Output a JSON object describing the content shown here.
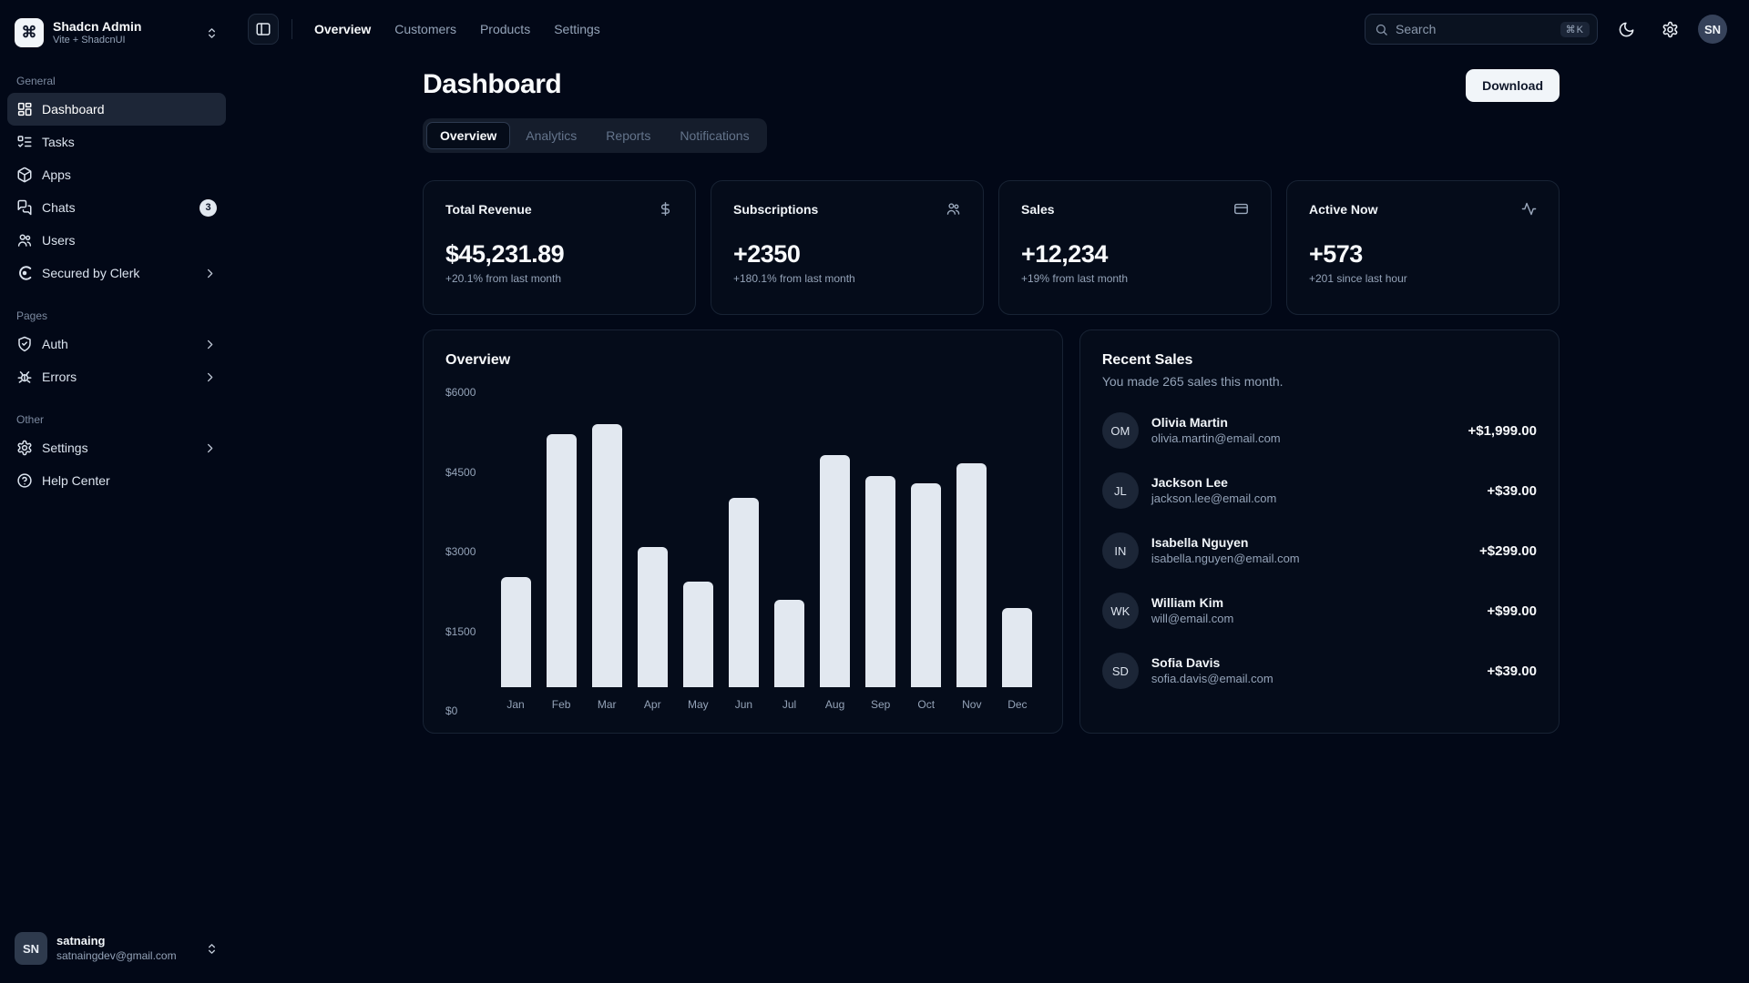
{
  "colors": {
    "background": "#020817",
    "card": "#050c1a",
    "border": "#182334",
    "accent": "#1d2637",
    "foreground": "#f8fafc",
    "muted": "#94a3b8",
    "bar": "#e2e8f0"
  },
  "app": {
    "name": "Shadcn Admin",
    "subtitle": "Vite + ShadcnUI",
    "logo_glyph": "⌘"
  },
  "topnav": {
    "links": [
      {
        "label": "Overview"
      },
      {
        "label": "Customers"
      },
      {
        "label": "Products"
      },
      {
        "label": "Settings"
      }
    ]
  },
  "search": {
    "placeholder": "Search",
    "shortcut": "⌘K"
  },
  "header_icons": [
    "moon-icon",
    "gear-icon"
  ],
  "header_avatar": "SN",
  "sidebar": {
    "sections": [
      {
        "title": "General",
        "items": [
          {
            "label": "Dashboard",
            "icon": "layout-dashboard-icon"
          },
          {
            "label": "Tasks",
            "icon": "list-todo-icon"
          },
          {
            "label": "Apps",
            "icon": "package-icon"
          },
          {
            "label": "Chats",
            "icon": "messages-icon",
            "badge": "3"
          },
          {
            "label": "Users",
            "icon": "users-icon"
          },
          {
            "label": "Secured by Clerk",
            "icon": "clerk-icon"
          }
        ]
      },
      {
        "title": "Pages",
        "items": [
          {
            "label": "Auth",
            "icon": "shield-check-icon"
          },
          {
            "label": "Errors",
            "icon": "bug-icon"
          }
        ]
      },
      {
        "title": "Other",
        "items": [
          {
            "label": "Settings",
            "icon": "gear-icon"
          },
          {
            "label": "Help Center",
            "icon": "help-circle-icon"
          }
        ]
      }
    ],
    "user": {
      "initials": "SN",
      "name": "satnaing",
      "email": "satnaingdev@gmail.com"
    }
  },
  "page": {
    "title": "Dashboard",
    "download_label": "Download",
    "tabs": [
      {
        "label": "Overview"
      },
      {
        "label": "Analytics"
      },
      {
        "label": "Reports"
      },
      {
        "label": "Notifications"
      }
    ]
  },
  "stats": [
    {
      "title": "Total Revenue",
      "icon": "dollar-icon",
      "value": "$45,231.89",
      "delta": "+20.1% from last month"
    },
    {
      "title": "Subscriptions",
      "icon": "users-icon",
      "value": "+2350",
      "delta": "+180.1% from last month"
    },
    {
      "title": "Sales",
      "icon": "credit-card-icon",
      "value": "+12,234",
      "delta": "+19% from last month"
    },
    {
      "title": "Active Now",
      "icon": "activity-icon",
      "value": "+573",
      "delta": "+201 since last hour"
    }
  ],
  "chart_data": {
    "type": "bar",
    "title": "Overview",
    "categories": [
      "Jan",
      "Feb",
      "Mar",
      "Apr",
      "May",
      "Jun",
      "Jul",
      "Aug",
      "Sep",
      "Oct",
      "Nov",
      "Dec"
    ],
    "values": [
      2250,
      5150,
      5350,
      2850,
      2150,
      3850,
      1780,
      4730,
      4300,
      4150,
      4550,
      1610
    ],
    "ytick_labels": [
      "$6000",
      "$4500",
      "$3000",
      "$1500",
      "$0"
    ],
    "ylim": [
      0,
      6000
    ],
    "bar_color": "#e2e8f0",
    "grid": false,
    "legend": false
  },
  "recent_sales": {
    "title": "Recent Sales",
    "subtitle": "You made 265 sales this month.",
    "items": [
      {
        "initials": "OM",
        "name": "Olivia Martin",
        "email": "olivia.martin@email.com",
        "amount": "+$1,999.00"
      },
      {
        "initials": "JL",
        "name": "Jackson Lee",
        "email": "jackson.lee@email.com",
        "amount": "+$39.00"
      },
      {
        "initials": "IN",
        "name": "Isabella Nguyen",
        "email": "isabella.nguyen@email.com",
        "amount": "+$299.00"
      },
      {
        "initials": "WK",
        "name": "William Kim",
        "email": "will@email.com",
        "amount": "+$99.00"
      },
      {
        "initials": "SD",
        "name": "Sofia Davis",
        "email": "sofia.davis@email.com",
        "amount": "+$39.00"
      }
    ]
  }
}
